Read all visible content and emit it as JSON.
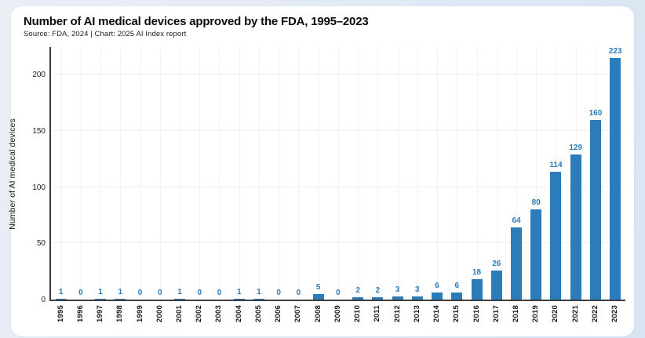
{
  "header": {
    "title": "Number of AI medical devices approved by the FDA, 1995–2023",
    "source": "Source: FDA, 2024 | Chart: 2025 AI Index report"
  },
  "chart_data": {
    "type": "bar",
    "title": "Number of AI medical devices approved by the FDA, 1995–2023",
    "subtitle": "Source: FDA, 2024 | Chart: 2025 AI Index report",
    "categories": [
      "1995",
      "1996",
      "1997",
      "1998",
      "1999",
      "2000",
      "2001",
      "2002",
      "2003",
      "2004",
      "2005",
      "2006",
      "2007",
      "2008",
      "2009",
      "2010",
      "2011",
      "2012",
      "2013",
      "2014",
      "2015",
      "2016",
      "2017",
      "2018",
      "2019",
      "2020",
      "2021",
      "2022",
      "2023"
    ],
    "values": [
      1,
      0,
      1,
      1,
      0,
      0,
      1,
      0,
      0,
      1,
      1,
      0,
      0,
      5,
      0,
      2,
      2,
      3,
      3,
      6,
      6,
      18,
      26,
      64,
      80,
      114,
      129,
      160,
      223
    ],
    "xlabel": "",
    "ylabel": "Number of AI medical devices",
    "yticks": [
      0,
      50,
      100,
      150,
      200
    ],
    "ylim": [
      0,
      226
    ],
    "grid": "on",
    "legend": "none",
    "bar_color": "#2b7cb8",
    "value_label_color": "#2b7cb8",
    "axis_color": "#3d3d3d"
  }
}
